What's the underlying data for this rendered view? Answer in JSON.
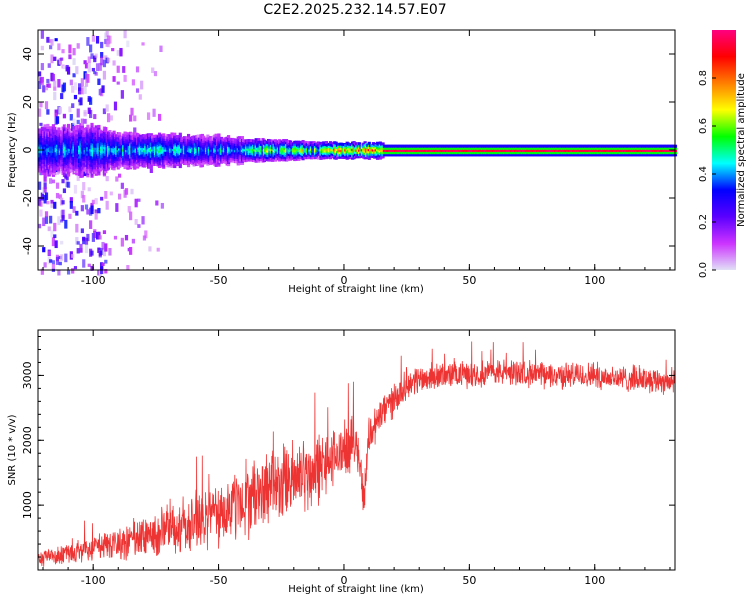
{
  "title": "C2E2.2025.232.14.57.E07",
  "chart_data": [
    {
      "type": "heatmap",
      "xlabel": "Height of straight line (km)",
      "ylabel": "Frequency (Hz)",
      "xlim": [
        -122,
        132
      ],
      "ylim": [
        -50,
        50
      ],
      "xticks": [
        -100,
        -50,
        0,
        50,
        100
      ],
      "xtick_labels": [
        "-100",
        "-50",
        "0",
        "50",
        "100"
      ],
      "yticks": [
        -40,
        -20,
        0,
        20,
        40
      ],
      "ytick_labels": [
        "-40",
        "-20",
        "0",
        "20",
        "40"
      ],
      "colorbar": {
        "label": "Normalized spectral amplitude",
        "range": [
          0,
          1
        ],
        "ticks": [
          0.0,
          0.2,
          0.4,
          0.6,
          0.8
        ],
        "tick_labels": [
          "0.0",
          "0.2",
          "0.4",
          "0.6",
          "0.8"
        ],
        "colormap": [
          "#e0e0f6",
          "#cc33ff",
          "#5a00ff",
          "#0000ff",
          "#00ffff",
          "#00ff00",
          "#ffff00",
          "#ff7f00",
          "#ff0000",
          "#ff0080"
        ]
      },
      "description_points": [
        {
          "x": -120,
          "band_halfwidth_hz": 50,
          "peak_amp": 0.3
        },
        {
          "x": -95,
          "band_halfwidth_hz": 8,
          "peak_amp": 0.45
        },
        {
          "x": -50,
          "band_halfwidth_hz": 5,
          "peak_amp": 0.5
        },
        {
          "x": -20,
          "band_halfwidth_hz": 3,
          "peak_amp": 0.8
        },
        {
          "x": 20,
          "band_halfwidth_hz": 2,
          "peak_amp": 0.95
        },
        {
          "x": 130,
          "band_halfwidth_hz": 2,
          "peak_amp": 0.95
        }
      ]
    },
    {
      "type": "line",
      "xlabel": "Height of straight line (km)",
      "ylabel": "SNR (10 * v/v)",
      "xlim": [
        -122,
        132
      ],
      "ylim": [
        0,
        3700
      ],
      "xticks": [
        -100,
        -50,
        0,
        50,
        100
      ],
      "xtick_labels": [
        "-100",
        "-50",
        "0",
        "50",
        "100"
      ],
      "yticks": [
        1000,
        2000,
        3000
      ],
      "ytick_labels": [
        "1000",
        "2000",
        "3000"
      ],
      "color": "#ee3333",
      "x": [
        -122,
        -110,
        -100,
        -90,
        -80,
        -70,
        -60,
        -50,
        -40,
        -30,
        -20,
        -10,
        -5,
        0,
        5,
        8,
        10,
        15,
        20,
        25,
        30,
        40,
        50,
        60,
        70,
        80,
        90,
        100,
        110,
        120,
        132
      ],
      "y": [
        180,
        260,
        350,
        400,
        500,
        620,
        750,
        850,
        1050,
        1250,
        1400,
        1550,
        1700,
        1850,
        2000,
        1100,
        2100,
        2400,
        2650,
        2850,
        2950,
        3000,
        3020,
        3050,
        3050,
        3000,
        3000,
        3000,
        2950,
        2950,
        2900
      ],
      "noise": [
        120,
        150,
        200,
        300,
        350,
        400,
        450,
        500,
        550,
        550,
        600,
        550,
        450,
        400,
        400,
        300,
        300,
        300,
        250,
        220,
        220,
        200,
        200,
        200,
        200,
        200,
        200,
        200,
        200,
        200,
        200
      ]
    }
  ]
}
